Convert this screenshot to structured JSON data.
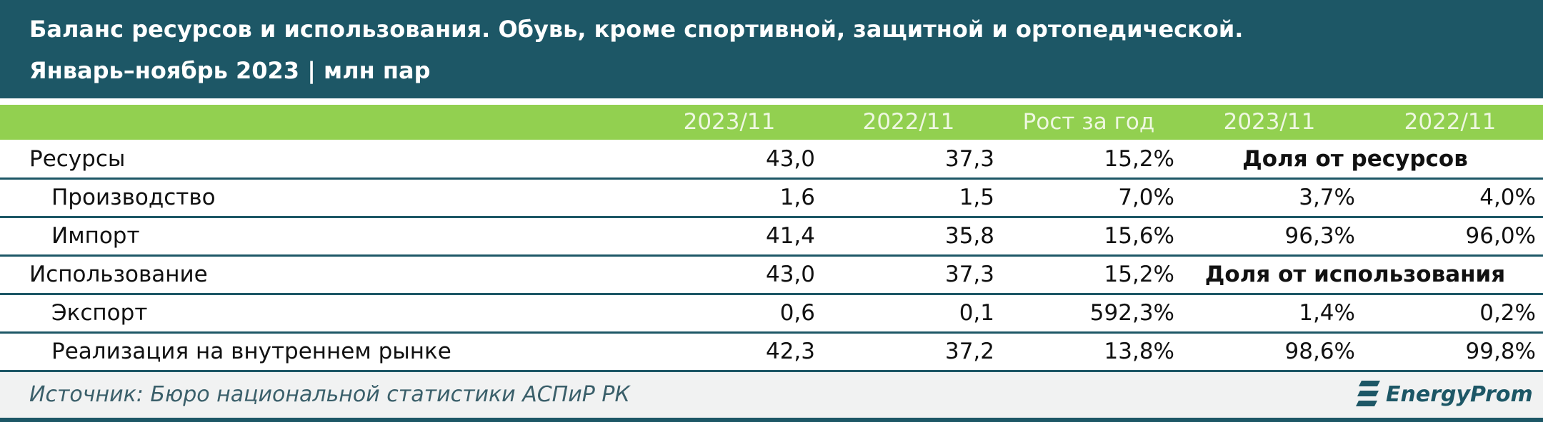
{
  "header": {
    "title": "Баланс ресурсов и использования. Обувь, кроме спортивной, защитной и ортопедической.",
    "subtitle": "Январь–ноябрь 2023 | млн пар"
  },
  "table": {
    "columns": [
      "2023/11",
      "2022/11",
      "Рост за год",
      "2023/11",
      "2022/11"
    ],
    "groups": [
      {
        "label": "Ресурсы",
        "values": [
          "43,0",
          "37,3",
          "15,2%"
        ],
        "share_label": "Доля от ресурсов",
        "items": [
          {
            "label": "Производство",
            "values": [
              "1,6",
              "1,5",
              "7,0%",
              "3,7%",
              "4,0%"
            ]
          },
          {
            "label": "Импорт",
            "values": [
              "41,4",
              "35,8",
              "15,6%",
              "96,3%",
              "96,0%"
            ]
          }
        ]
      },
      {
        "label": "Использование",
        "values": [
          "43,0",
          "37,3",
          "15,2%"
        ],
        "share_label": "Доля от использования",
        "items": [
          {
            "label": "Экспорт",
            "values": [
              "0,6",
              "0,1",
              "592,3%",
              "1,4%",
              "0,2%"
            ]
          },
          {
            "label": "Реализация на внутреннем рынке",
            "values": [
              "42,3",
              "37,2",
              "13,8%",
              "98,6%",
              "99,8%"
            ]
          }
        ]
      }
    ]
  },
  "footer": {
    "source": "Источник: Бюро национальной статистики АСПиР РК",
    "logo": "EnergyProm"
  }
}
